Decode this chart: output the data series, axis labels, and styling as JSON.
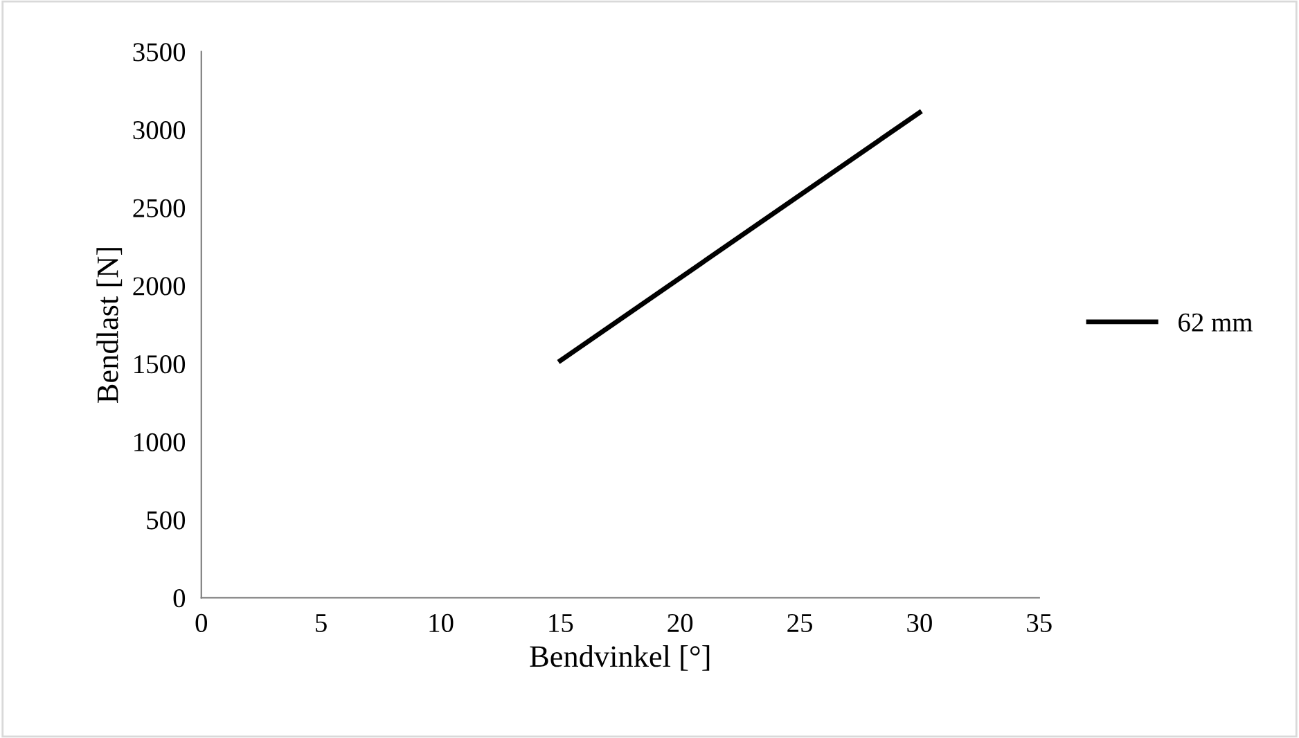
{
  "chart_data": {
    "type": "line",
    "xlabel": "Bendvinkel [°]",
    "ylabel": "Bendlast [N]",
    "x": [
      15,
      30
    ],
    "series": [
      {
        "name": "62 mm",
        "color": "#000000",
        "values": [
          1520,
          3110
        ]
      }
    ],
    "xlim": [
      0,
      35
    ],
    "xticks": [
      0,
      5,
      10,
      15,
      20,
      25,
      30,
      35
    ],
    "ylim": [
      0,
      3500
    ],
    "yticks": [
      0,
      500,
      1000,
      1500,
      2000,
      2500,
      3000,
      3500
    ],
    "grid": false,
    "legend": "right",
    "marker": "none",
    "line_style": "solid"
  }
}
